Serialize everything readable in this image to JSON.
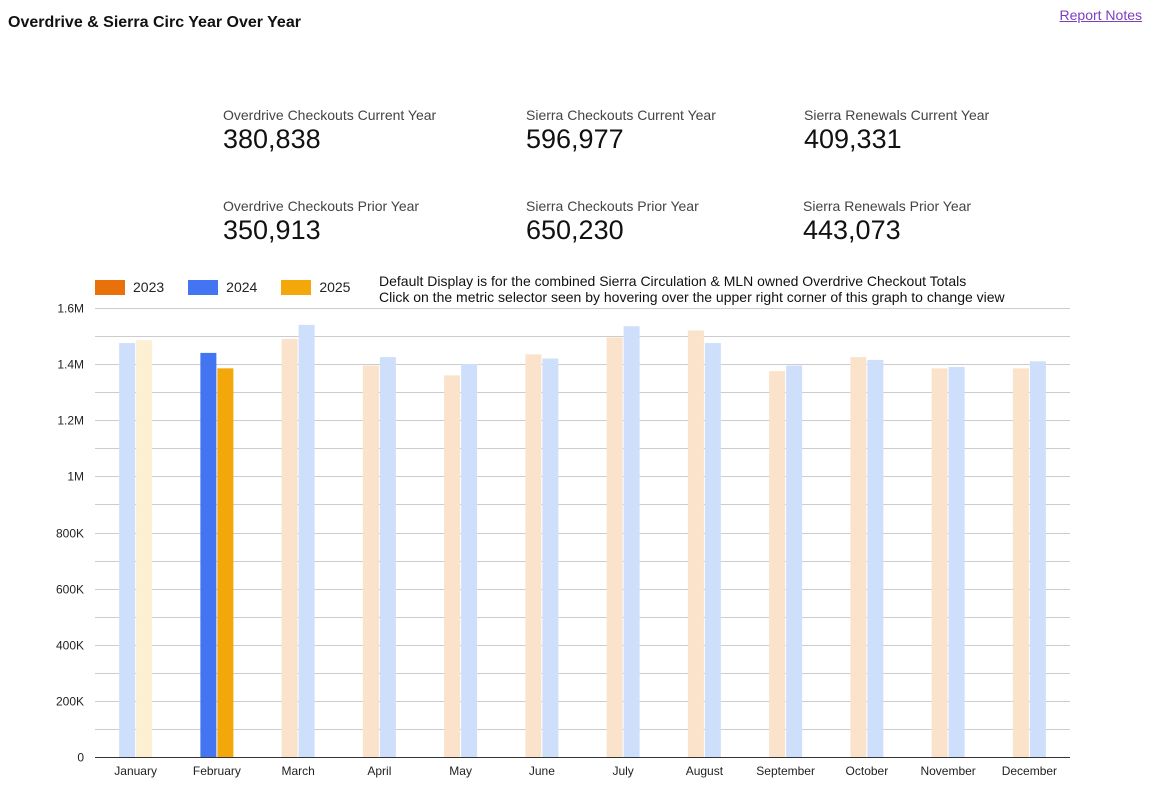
{
  "header": {
    "title": "Overdrive & Sierra Circ Year Over Year",
    "report_notes": "Report Notes"
  },
  "kpis": [
    {
      "label": "Overdrive Checkouts Current Year",
      "value": "380,838"
    },
    {
      "label": "Sierra Checkouts Current Year",
      "value": "596,977"
    },
    {
      "label": "Sierra Renewals Current Year",
      "value": "409,331"
    },
    {
      "label": "Overdrive Checkouts Prior Year",
      "value": "350,913"
    },
    {
      "label": "Sierra Checkouts Prior Year",
      "value": "650,230"
    },
    {
      "label": "Sierra Renewals Prior Year",
      "value": "443,073"
    }
  ],
  "note": {
    "line1": "Default Display is for the combined Sierra Circulation & MLN owned Overdrive Checkout Totals",
    "line2": "Click on the metric selector seen by hovering over the upper right corner of this graph to change view"
  },
  "colors": {
    "2023": "#e8710a",
    "2024": "#4374f1",
    "2025": "#f4a70a",
    "2023_faded": "#fae3ca",
    "2024_faded": "#cddffa",
    "2025_faded": "#fcefd2",
    "grid": "#cccccc",
    "axis": "#333333"
  },
  "chart_data": {
    "type": "bar",
    "categories": [
      "January",
      "February",
      "March",
      "April",
      "May",
      "June",
      "July",
      "August",
      "September",
      "October",
      "November",
      "December"
    ],
    "series": [
      {
        "name": "2023",
        "values": [
          null,
          null,
          1490000,
          1395000,
          1360000,
          1435000,
          1495000,
          1520000,
          1375000,
          1425000,
          1385000,
          1385000
        ]
      },
      {
        "name": "2024",
        "values": [
          1475000,
          1440000,
          1540000,
          1425000,
          1400000,
          1420000,
          1535000,
          1475000,
          1395000,
          1415000,
          1390000,
          1410000
        ]
      },
      {
        "name": "2025",
        "values": [
          1485000,
          1385000,
          null,
          null,
          null,
          null,
          null,
          null,
          null,
          null,
          null,
          null
        ]
      }
    ],
    "highlighted_category": "February",
    "ylim": [
      0,
      1600000
    ],
    "yticks": [
      0,
      200000,
      400000,
      600000,
      800000,
      1000000,
      1200000,
      1400000,
      1600000
    ],
    "ytick_labels": [
      "0",
      "200K",
      "400K",
      "600K",
      "800K",
      "1M",
      "1.2M",
      "1.4M",
      "1.6M"
    ],
    "minor_gridlines": true,
    "legend_position": "top-left"
  }
}
